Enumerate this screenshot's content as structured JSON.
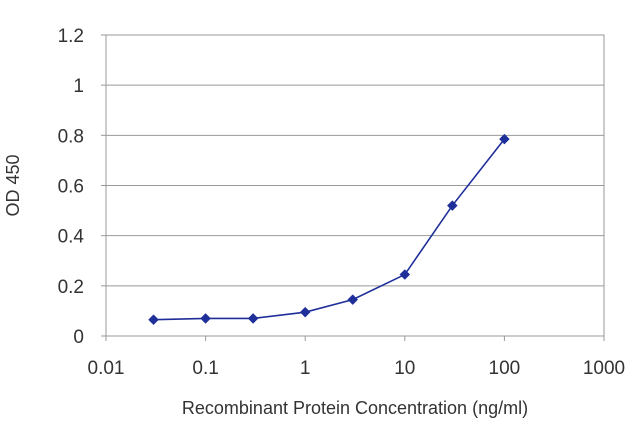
{
  "chart_data": {
    "type": "line",
    "xlabel": "Recombinant Protein Concentration (ng/ml)",
    "ylabel": "OD 450",
    "xscale": "log",
    "xlim": [
      0.01,
      1000
    ],
    "ylim": [
      0,
      1.2
    ],
    "x_ticks": [
      0.01,
      0.1,
      1,
      10,
      100,
      1000
    ],
    "x_tick_labels": [
      "0.01",
      "0.1",
      "1",
      "10",
      "100",
      "1000"
    ],
    "y_ticks": [
      0,
      0.2,
      0.4,
      0.6,
      0.8,
      1,
      1.2
    ],
    "y_tick_labels": [
      "0",
      "0.2",
      "0.4",
      "0.6",
      "0.8",
      "1",
      "1.2"
    ],
    "grid": "horizontal",
    "legend": "none",
    "series": [
      {
        "x": [
          0.03,
          0.1,
          0.3,
          1,
          3,
          10,
          30,
          100
        ],
        "y": [
          0.065,
          0.07,
          0.07,
          0.095,
          0.145,
          0.245,
          0.52,
          0.785
        ],
        "color": "#1f2f9a",
        "marker": "diamond"
      }
    ]
  }
}
